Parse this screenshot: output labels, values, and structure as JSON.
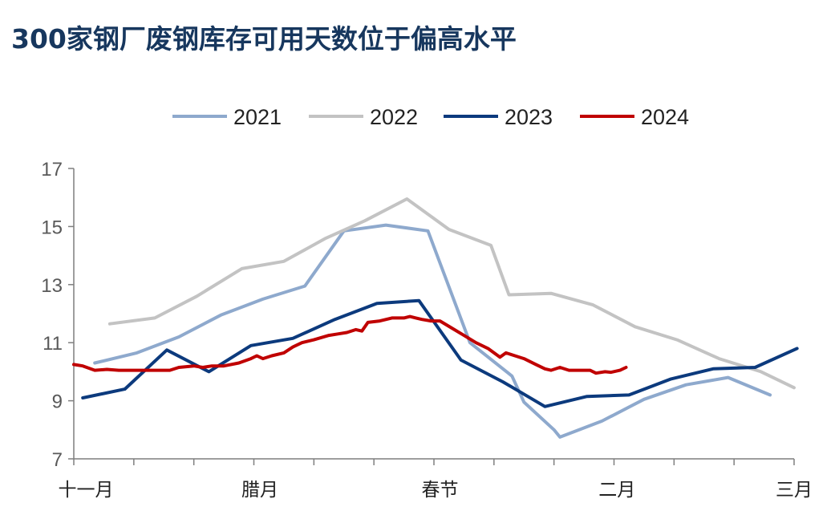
{
  "title": "300家钢厂废钢库存可用天数位于偏高水平",
  "chart_data": {
    "type": "line",
    "title": "300家钢厂废钢库存可用天数位于偏高水平",
    "xlabel": "",
    "ylabel": "",
    "ylim": [
      7,
      17
    ],
    "yticks": [
      7,
      9,
      11,
      13,
      15,
      17
    ],
    "xlim": [
      0,
      24
    ],
    "x_major_ticks": [
      0,
      2,
      4,
      6,
      8,
      10,
      12,
      14,
      16,
      18,
      20,
      22,
      24
    ],
    "x_tick_labels": [
      {
        "x": 0.4,
        "label": "十一月"
      },
      {
        "x": 6.2,
        "label": "腊月"
      },
      {
        "x": 12.2,
        "label": "春节"
      },
      {
        "x": 18.1,
        "label": "二月"
      },
      {
        "x": 24.0,
        "label": "三月"
      }
    ],
    "grid": false,
    "legend_position": "top",
    "series": [
      {
        "name": "2021",
        "color": "#8ea9cd",
        "points": [
          [
            0.7,
            10.3
          ],
          [
            2.1,
            10.65
          ],
          [
            3.5,
            11.2
          ],
          [
            4.9,
            11.95
          ],
          [
            6.3,
            12.5
          ],
          [
            7.7,
            12.95
          ],
          [
            9.0,
            14.85
          ],
          [
            10.4,
            15.05
          ],
          [
            11.8,
            14.85
          ],
          [
            13.2,
            11.0
          ],
          [
            14.6,
            9.85
          ],
          [
            15.0,
            8.95
          ],
          [
            16.0,
            8.0
          ],
          [
            16.2,
            7.75
          ],
          [
            17.6,
            8.3
          ],
          [
            19.0,
            9.05
          ],
          [
            20.4,
            9.55
          ],
          [
            21.8,
            9.8
          ],
          [
            23.2,
            9.2
          ]
        ]
      },
      {
        "name": "2022",
        "color": "#c3c3c3",
        "points": [
          [
            1.2,
            11.65
          ],
          [
            2.7,
            11.85
          ],
          [
            4.1,
            12.6
          ],
          [
            5.6,
            13.55
          ],
          [
            7.0,
            13.8
          ],
          [
            8.4,
            14.6
          ],
          [
            9.7,
            15.2
          ],
          [
            11.1,
            15.95
          ],
          [
            12.5,
            14.9
          ],
          [
            13.9,
            14.35
          ],
          [
            14.5,
            12.65
          ],
          [
            15.9,
            12.7
          ],
          [
            17.3,
            12.3
          ],
          [
            18.7,
            11.55
          ],
          [
            20.1,
            11.1
          ],
          [
            21.5,
            10.45
          ],
          [
            22.9,
            10.0
          ],
          [
            24.0,
            9.45
          ]
        ]
      },
      {
        "name": "2023",
        "color": "#0c3a7d",
        "points": [
          [
            0.3,
            9.1
          ],
          [
            1.7,
            9.4
          ],
          [
            3.1,
            10.75
          ],
          [
            4.5,
            10.0
          ],
          [
            5.9,
            10.9
          ],
          [
            7.3,
            11.15
          ],
          [
            8.7,
            11.8
          ],
          [
            10.1,
            12.35
          ],
          [
            11.5,
            12.45
          ],
          [
            12.9,
            10.4
          ],
          [
            14.3,
            9.65
          ],
          [
            15.7,
            8.8
          ],
          [
            17.1,
            9.15
          ],
          [
            18.5,
            9.2
          ],
          [
            19.9,
            9.75
          ],
          [
            21.3,
            10.1
          ],
          [
            22.7,
            10.15
          ],
          [
            24.1,
            10.8
          ]
        ]
      },
      {
        "name": "2024",
        "color": "#c00000",
        "points": [
          [
            0.0,
            10.25
          ],
          [
            0.3,
            10.2
          ],
          [
            0.7,
            10.05
          ],
          [
            1.1,
            10.08
          ],
          [
            1.5,
            10.05
          ],
          [
            2.0,
            10.05
          ],
          [
            2.5,
            10.05
          ],
          [
            3.0,
            10.05
          ],
          [
            3.2,
            10.05
          ],
          [
            3.5,
            10.15
          ],
          [
            4.0,
            10.2
          ],
          [
            4.3,
            10.15
          ],
          [
            4.6,
            10.2
          ],
          [
            5.0,
            10.2
          ],
          [
            5.5,
            10.3
          ],
          [
            5.9,
            10.45
          ],
          [
            6.1,
            10.55
          ],
          [
            6.3,
            10.45
          ],
          [
            6.6,
            10.55
          ],
          [
            7.0,
            10.65
          ],
          [
            7.3,
            10.85
          ],
          [
            7.6,
            11.0
          ],
          [
            8.0,
            11.1
          ],
          [
            8.5,
            11.25
          ],
          [
            8.8,
            11.3
          ],
          [
            9.1,
            11.35
          ],
          [
            9.4,
            11.45
          ],
          [
            9.6,
            11.4
          ],
          [
            9.8,
            11.7
          ],
          [
            10.2,
            11.75
          ],
          [
            10.6,
            11.85
          ],
          [
            11.0,
            11.85
          ],
          [
            11.2,
            11.9
          ],
          [
            11.4,
            11.85
          ],
          [
            11.6,
            11.8
          ],
          [
            11.9,
            11.75
          ],
          [
            12.2,
            11.75
          ],
          [
            12.6,
            11.5
          ],
          [
            13.0,
            11.25
          ],
          [
            13.4,
            11.0
          ],
          [
            13.8,
            10.8
          ],
          [
            14.2,
            10.5
          ],
          [
            14.4,
            10.65
          ],
          [
            14.7,
            10.55
          ],
          [
            15.0,
            10.45
          ],
          [
            15.4,
            10.25
          ],
          [
            15.7,
            10.1
          ],
          [
            15.9,
            10.05
          ],
          [
            16.2,
            10.15
          ],
          [
            16.5,
            10.05
          ],
          [
            16.9,
            10.05
          ],
          [
            17.2,
            10.05
          ],
          [
            17.4,
            9.95
          ],
          [
            17.7,
            10.0
          ],
          [
            17.9,
            9.98
          ],
          [
            18.2,
            10.05
          ],
          [
            18.4,
            10.15
          ]
        ]
      }
    ]
  }
}
